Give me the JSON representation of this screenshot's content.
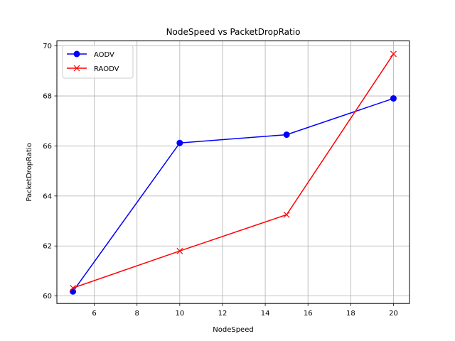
{
  "chart_data": {
    "type": "line",
    "title": "NodeSpeed vs PacketDropRatio",
    "xlabel": "NodeSpeed",
    "ylabel": "PacketDropRatio",
    "x": [
      5,
      10,
      15,
      20
    ],
    "xlim": [
      4.25,
      20.75
    ],
    "ylim": [
      59.7,
      70.2
    ],
    "xticks": [
      6,
      8,
      10,
      12,
      14,
      16,
      18,
      20
    ],
    "yticks": [
      60,
      62,
      64,
      66,
      68,
      70
    ],
    "grid": true,
    "legend_position": "top-left",
    "series": [
      {
        "name": "AODV",
        "values": [
          60.18,
          66.12,
          66.45,
          67.9
        ],
        "color": "#0000ff",
        "marker": "circle"
      },
      {
        "name": "RAODV",
        "values": [
          60.32,
          61.8,
          63.25,
          69.68
        ],
        "color": "#ff0000",
        "marker": "x"
      }
    ]
  }
}
